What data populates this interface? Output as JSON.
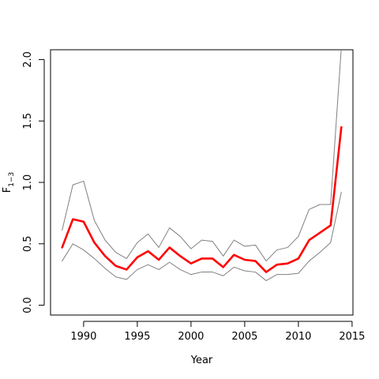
{
  "chart_data": {
    "type": "line",
    "title": "",
    "xlabel": "Year",
    "ylabel_main": "F",
    "ylabel_sub": "1−3",
    "xlim": [
      1986.92,
      2015.08
    ],
    "ylim": [
      -0.08,
      2.08
    ],
    "xticks": [
      1990,
      1995,
      2000,
      2005,
      2010,
      2015
    ],
    "yticks": [
      0.0,
      0.5,
      1.0,
      1.5,
      2.0
    ],
    "ytick_labels": [
      "0.0",
      "0.5",
      "1.0",
      "1.5",
      "2.0"
    ],
    "grid": false,
    "x": [
      1988,
      1989,
      1990,
      1991,
      1992,
      1993,
      1994,
      1995,
      1996,
      1997,
      1998,
      1999,
      2000,
      2001,
      2002,
      2003,
      2004,
      2005,
      2006,
      2007,
      2008,
      2009,
      2010,
      2011,
      2012,
      2013,
      2014
    ],
    "series": [
      {
        "role": "estimate",
        "color": "#ff0000",
        "values": [
          0.47,
          0.7,
          0.68,
          0.51,
          0.4,
          0.32,
          0.29,
          0.39,
          0.44,
          0.37,
          0.47,
          0.4,
          0.34,
          0.38,
          0.38,
          0.31,
          0.41,
          0.37,
          0.36,
          0.27,
          0.33,
          0.34,
          0.38,
          0.53,
          0.59,
          0.65,
          1.45
        ]
      },
      {
        "role": "upper-bound",
        "color": "#808080",
        "values": [
          0.61,
          0.98,
          1.01,
          0.69,
          0.53,
          0.43,
          0.38,
          0.51,
          0.58,
          0.47,
          0.63,
          0.56,
          0.46,
          0.53,
          0.52,
          0.4,
          0.53,
          0.48,
          0.49,
          0.36,
          0.45,
          0.47,
          0.56,
          0.78,
          0.82,
          0.82,
          2.1
        ]
      },
      {
        "role": "lower-bound",
        "color": "#808080",
        "values": [
          0.36,
          0.5,
          0.45,
          0.38,
          0.3,
          0.23,
          0.21,
          0.29,
          0.33,
          0.29,
          0.35,
          0.29,
          0.25,
          0.27,
          0.27,
          0.24,
          0.31,
          0.28,
          0.27,
          0.2,
          0.25,
          0.25,
          0.26,
          0.36,
          0.43,
          0.51,
          0.92
        ]
      }
    ]
  }
}
